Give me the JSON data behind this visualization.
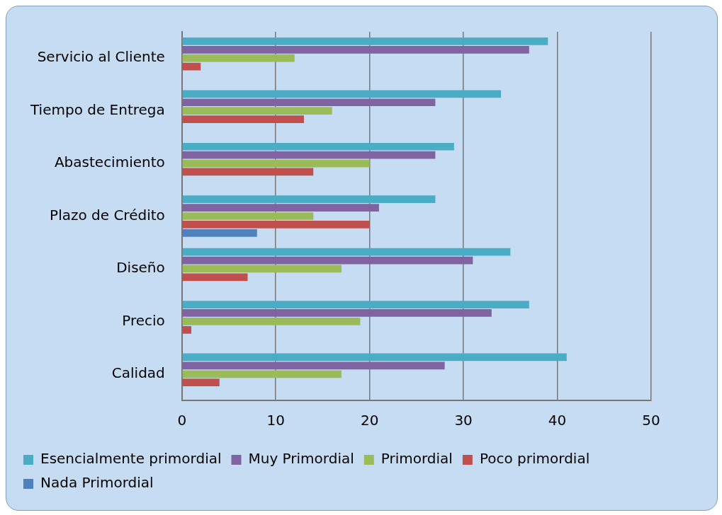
{
  "chart_data": {
    "type": "bar",
    "orientation": "horizontal",
    "categories": [
      "Servicio al Cliente",
      "Tiempo de Entrega",
      "Abastecimiento",
      "Plazo de Crédito",
      "Diseño",
      "Precio",
      "Calidad"
    ],
    "series": [
      {
        "name": "Esencialmente primordial",
        "color": "#4bacc6",
        "values": [
          39,
          34,
          29,
          27,
          35,
          37,
          41
        ]
      },
      {
        "name": "Muy Primordial",
        "color": "#8064a2",
        "values": [
          37,
          27,
          27,
          21,
          31,
          33,
          28
        ]
      },
      {
        "name": "Primordial",
        "color": "#9bbb59",
        "values": [
          12,
          16,
          20,
          14,
          17,
          19,
          17
        ]
      },
      {
        "name": "Poco primordial",
        "color": "#c0504d",
        "values": [
          2,
          13,
          14,
          20,
          7,
          1,
          4
        ]
      },
      {
        "name": "Nada Primordial",
        "color": "#4f81bd",
        "values": [
          0,
          0,
          0,
          8,
          0,
          0,
          0
        ]
      }
    ],
    "xlim": [
      0,
      50
    ],
    "xticks": [
      0,
      10,
      20,
      30,
      40,
      50
    ],
    "grid": "x",
    "legend": "bottom"
  }
}
